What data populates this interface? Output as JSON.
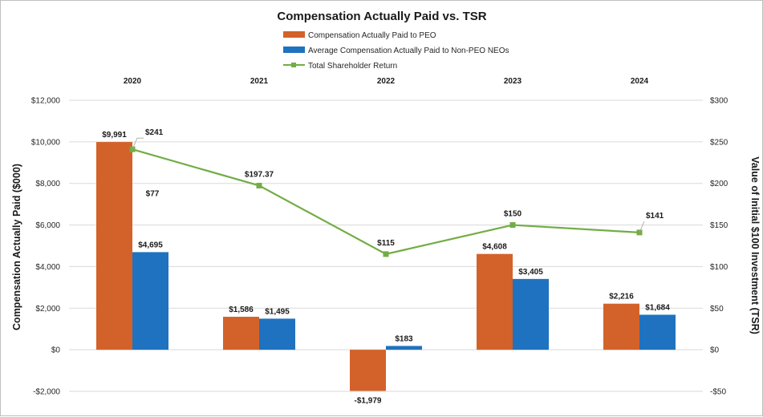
{
  "chart_data": {
    "type": "bar",
    "title": "Compensation Actually Paid vs. TSR",
    "categories": [
      "2020",
      "2021",
      "2022",
      "2023",
      "2024"
    ],
    "ylabel": "Compensation Actually Paid ($000)",
    "y2label": "Value of Initial $100 Investment (TSR)",
    "ylim": [
      -2000,
      12000
    ],
    "y2lim": [
      -50,
      300
    ],
    "yticks": [
      -2000,
      0,
      2000,
      4000,
      6000,
      8000,
      10000,
      12000
    ],
    "yticks_labels": [
      "-$2,000",
      "$0",
      "$2,000",
      "$4,000",
      "$6,000",
      "$8,000",
      "$10,000",
      "$12,000"
    ],
    "y2ticks": [
      -50,
      0,
      50,
      100,
      150,
      200,
      250,
      300
    ],
    "y2ticks_labels": [
      "-$50",
      "$0",
      "$50",
      "$100",
      "$150",
      "$200",
      "$250",
      "$300"
    ],
    "legend_position": "top-center",
    "series": [
      {
        "name": "Compensation Actually Paid to PEO",
        "kind": "bar",
        "axis": "left",
        "color": "#D3622A",
        "values": [
          9991,
          1586,
          -1979,
          4608,
          2216
        ],
        "labels": [
          "$9,991",
          "$1,586",
          "-$1,979",
          "$4,608",
          "$2,216"
        ]
      },
      {
        "name": "Average Compensation Actually Paid to Non-PEO NEOs",
        "kind": "bar",
        "axis": "left",
        "color": "#1F72BF",
        "values": [
          4695,
          1495,
          183,
          3405,
          1684
        ],
        "labels": [
          "$4,695",
          "$1,495",
          "$183",
          "$3,405",
          "$1,684"
        ]
      },
      {
        "name": "Total Shareholder Return",
        "kind": "line",
        "axis": "right",
        "color": "#72AD45",
        "values": [
          241,
          197.37,
          115,
          150,
          141
        ],
        "labels": [
          "$241",
          "$197.37",
          "$115",
          "$150",
          "$141"
        ]
      }
    ],
    "annotations": [
      "$77"
    ]
  }
}
